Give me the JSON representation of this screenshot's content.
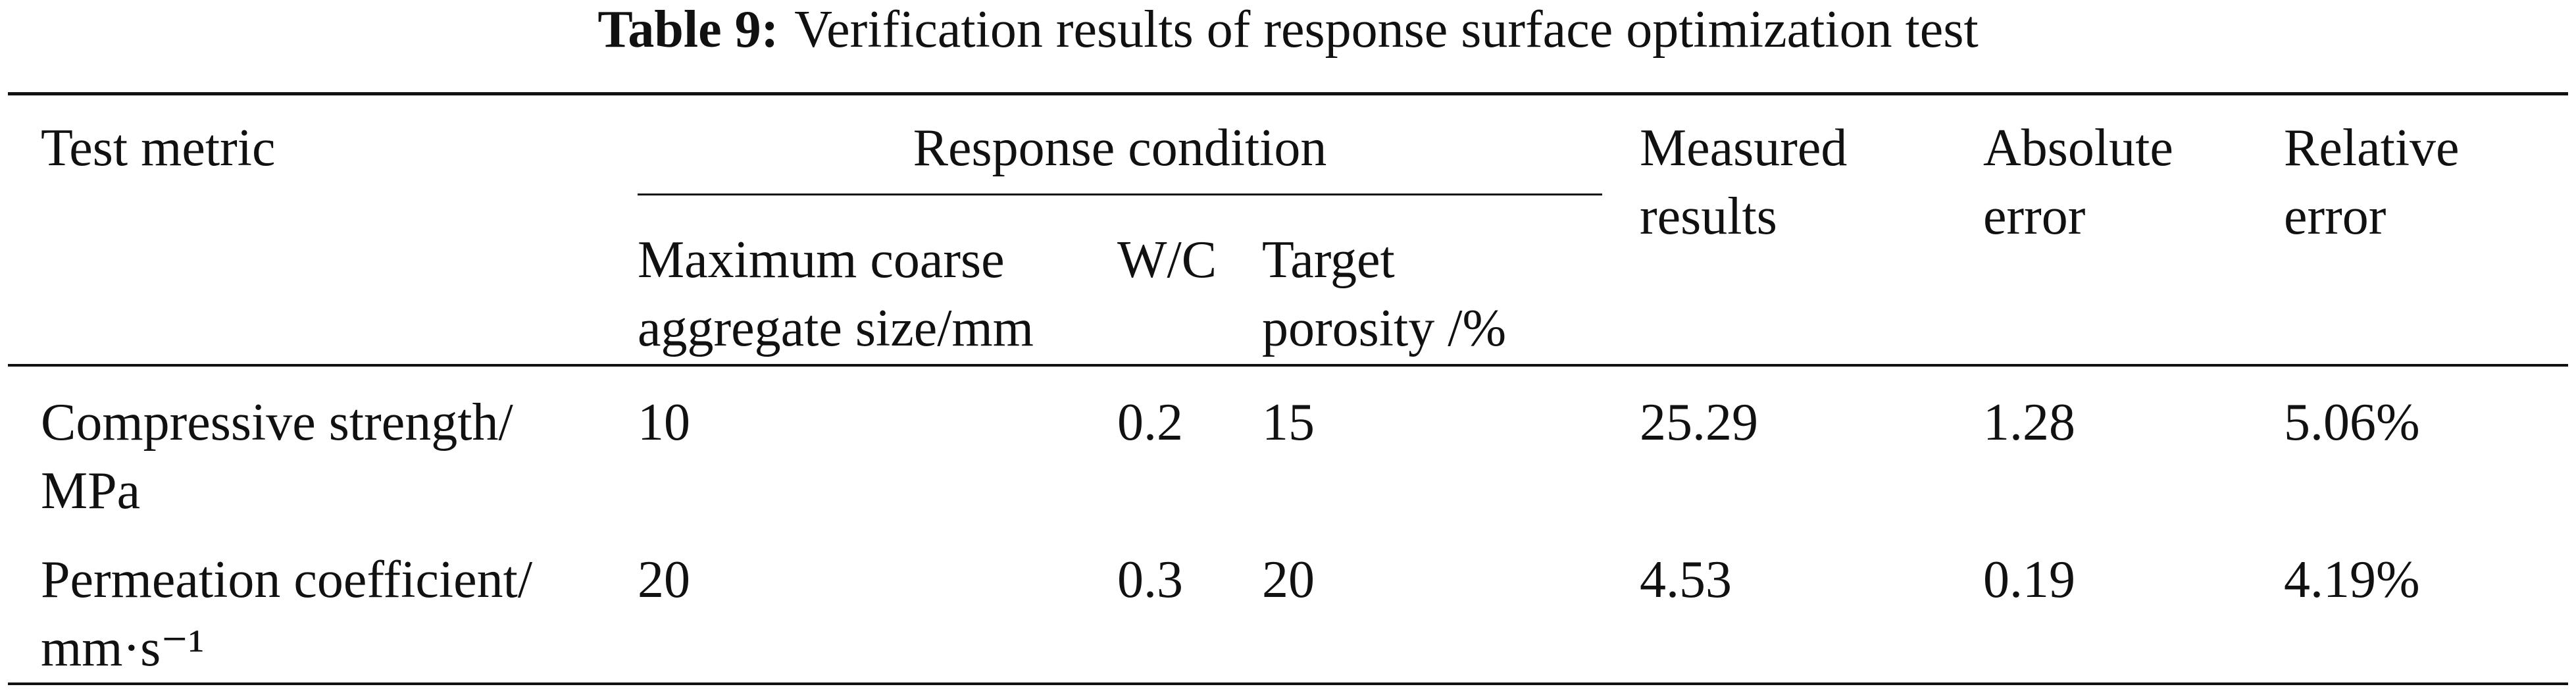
{
  "caption": {
    "label": "Table 9:",
    "title": "Verification results of response surface optimization test"
  },
  "table": {
    "header": {
      "test_metric": "Test metric",
      "response_condition": "Response condition",
      "measured": "Measured results",
      "absolute": "Absolute error",
      "relative": "Relative error"
    },
    "subheader": [
      "Maximum coarse aggregate size/mm",
      "W/C",
      "Target porosity /%"
    ],
    "rows": [
      [
        "Compressive strength/ MPa",
        "10",
        "0.2",
        "15",
        "25.29",
        "1.28",
        "5.06%"
      ],
      [
        "Permeation coefficient/ mm·s⁻¹",
        "20",
        "0.3",
        "20",
        "4.53",
        "0.19",
        "4.19%"
      ]
    ]
  }
}
